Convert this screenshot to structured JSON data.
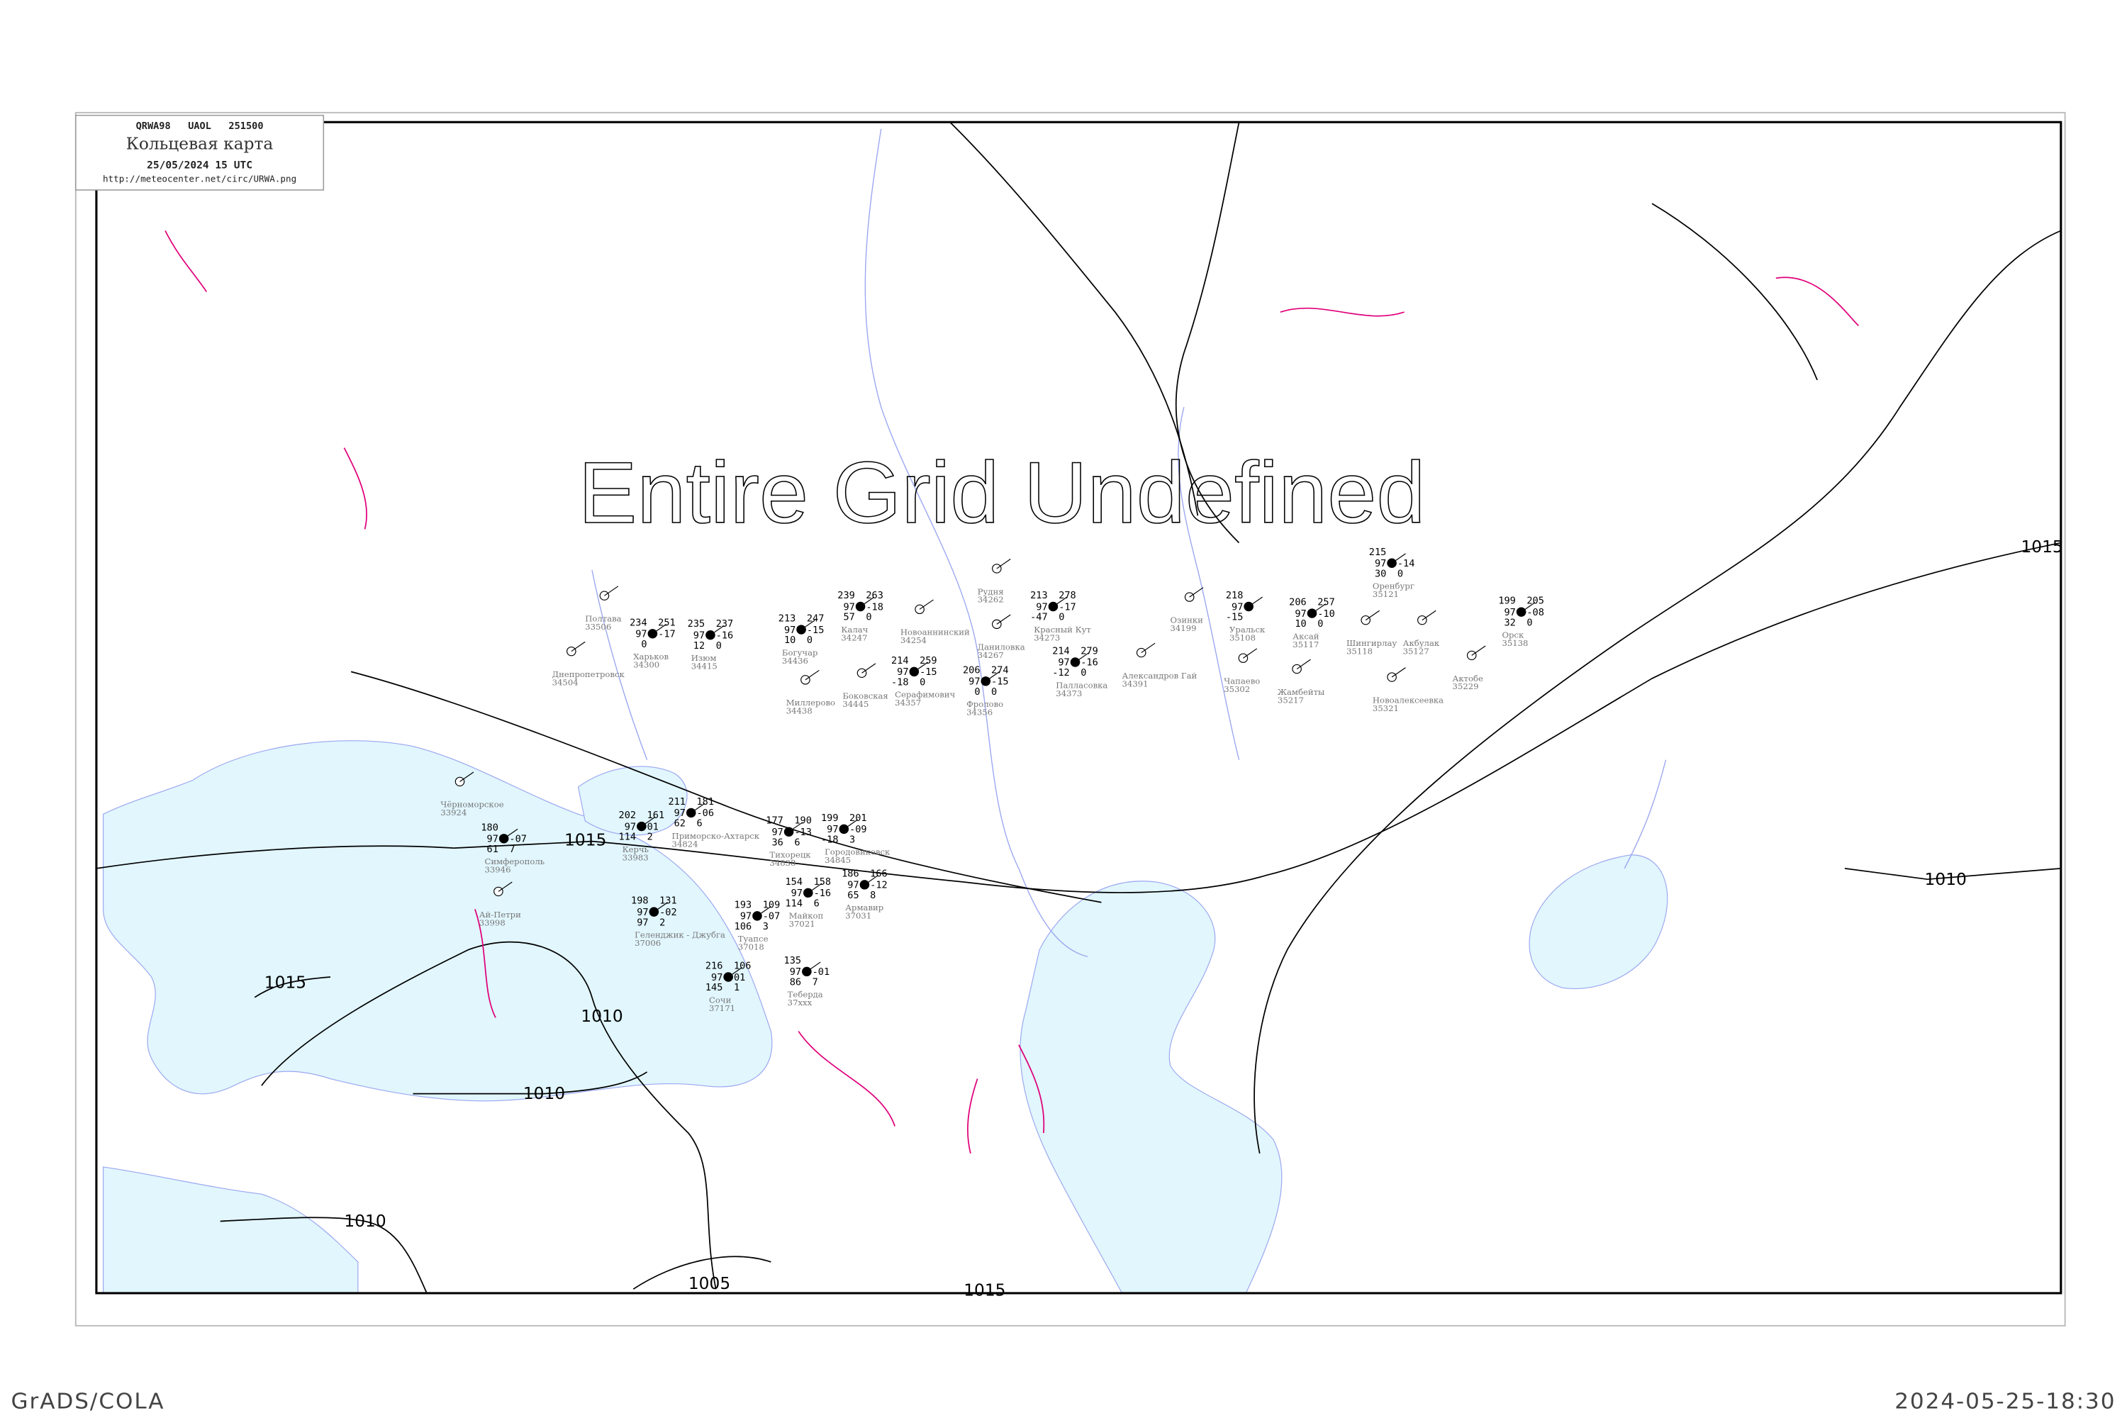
{
  "header": {
    "bulletin": "QRWA98   UAOL   251500",
    "title": "Кольцевая карта",
    "datetime": "25/05/2024 15 UTC",
    "url": "http://meteocenter.net/circ/URWA.png"
  },
  "overlay_message": "Entire Grid Undefined",
  "footer": {
    "left": "GrADS/COLA",
    "right": "2024-05-25-18:30"
  },
  "isobar_labels": [
    "1015",
    "1015",
    "1015",
    "1010",
    "1010",
    "1010",
    "1010",
    "1005",
    "1015"
  ],
  "colors": {
    "sea": "#e1f6fd",
    "river": "#9aa6f0",
    "front": "#e0007a",
    "isobar": "#000000",
    "station_name": "#777777",
    "precip_marker": "#1db31d"
  },
  "stations": [
    {
      "name": "Чёрноморское",
      "id": "33924",
      "obs": []
    },
    {
      "name": "Симферополь",
      "id": "33946",
      "obs": [
        "180",
        "97",
        "61",
        "",
        "-07",
        "7"
      ]
    },
    {
      "name": "Ай-Петри",
      "id": "33998",
      "obs": []
    },
    {
      "name": "Керчь",
      "id": "33983",
      "obs": [
        "202",
        "97",
        "114",
        "161",
        "01",
        "2"
      ]
    },
    {
      "name": "Приморско-Ахтарск",
      "id": "34824",
      "obs": [
        "211",
        "97",
        "62",
        "181",
        "-06",
        "6"
      ]
    },
    {
      "name": "Тихорецк",
      "id": "34838",
      "obs": [
        "177",
        "97",
        "36",
        "190",
        "-13",
        "6"
      ]
    },
    {
      "name": "Городовиковск",
      "id": "34845",
      "obs": [
        "199",
        "97",
        "-18",
        "201",
        "-09",
        "3"
      ]
    },
    {
      "name": "Геленджик - Джубга",
      "id": "37006",
      "obs": [
        "198",
        "97",
        "97",
        "131",
        "-02",
        "2"
      ]
    },
    {
      "name": "Туапсе",
      "id": "37018",
      "obs": [
        "193",
        "97",
        "106",
        "109",
        "-07",
        "3"
      ]
    },
    {
      "name": "Сочи",
      "id": "37171",
      "obs": [
        "216",
        "97",
        "145",
        "106",
        "01",
        "1"
      ]
    },
    {
      "name": "Майкоп",
      "id": "37021",
      "obs": [
        "154",
        "97",
        "114",
        "158",
        "-16",
        "6"
      ]
    },
    {
      "name": "Армавир",
      "id": "37031",
      "obs": [
        "186",
        "97",
        "65",
        "166",
        "-12",
        "8"
      ]
    },
    {
      "name": "Теберда",
      "id": "37xxx",
      "obs": [
        "135",
        "97",
        "86",
        "",
        "-01",
        "7"
      ]
    },
    {
      "name": "Полтава",
      "id": "33506",
      "obs": []
    },
    {
      "name": "Харьков",
      "id": "34300",
      "obs": [
        "234",
        "97",
        "0",
        "251",
        "-17",
        ""
      ]
    },
    {
      "name": "Изюм",
      "id": "34415",
      "obs": [
        "235",
        "97",
        "12",
        "237",
        "-16",
        "0"
      ]
    },
    {
      "name": "Днепропетровск",
      "id": "34504",
      "obs": []
    },
    {
      "name": "Калач",
      "id": "34247",
      "obs": [
        "239",
        "97",
        "57",
        "263",
        "-18",
        "0"
      ]
    },
    {
      "name": "Богучар",
      "id": "34436",
      "obs": [
        "213",
        "97",
        "10",
        "247",
        "-15",
        "0"
      ]
    },
    {
      "name": "Новоаннинский",
      "id": "34254",
      "obs": []
    },
    {
      "name": "Даниловка",
      "id": "34267",
      "obs": []
    },
    {
      "name": "Рудня",
      "id": "34262",
      "obs": []
    },
    {
      "name": "Серафимович",
      "id": "34357",
      "obs": [
        "214",
        "97",
        "-18",
        "259",
        "-15",
        "0"
      ]
    },
    {
      "name": "Фролово",
      "id": "34356",
      "obs": [
        "206",
        "97",
        "0",
        "274",
        "-15",
        "0"
      ]
    },
    {
      "name": "Боковская",
      "id": "34445",
      "obs": []
    },
    {
      "name": "Миллерово",
      "id": "34438",
      "obs": []
    },
    {
      "name": "Красный Кут",
      "id": "34273",
      "obs": [
        "213",
        "97",
        "-47",
        "278",
        "-17",
        "0"
      ]
    },
    {
      "name": "Палласовка",
      "id": "34373",
      "obs": [
        "214",
        "97",
        "-12",
        "279",
        "-16",
        "0"
      ]
    },
    {
      "name": "Александров Гай",
      "id": "34391",
      "obs": []
    },
    {
      "name": "Озинки",
      "id": "34199",
      "obs": []
    },
    {
      "name": "Уральск",
      "id": "35108",
      "obs": [
        "218",
        "97",
        "-15",
        "",
        "",
        ""
      ]
    },
    {
      "name": "Аксай",
      "id": "35117",
      "obs": [
        "206",
        "97",
        "10",
        "257",
        "-10",
        "0"
      ]
    },
    {
      "name": "Шингирлау",
      "id": "35118",
      "obs": []
    },
    {
      "name": "Акбулак",
      "id": "35127",
      "obs": []
    },
    {
      "name": "Оренбург",
      "id": "35121",
      "obs": [
        "215",
        "97",
        "30",
        "",
        "-14",
        "0"
      ]
    },
    {
      "name": "Орск",
      "id": "35138",
      "obs": [
        "199",
        "97",
        "32",
        "205",
        "-08",
        "0"
      ]
    },
    {
      "name": "Чапаево",
      "id": "35302",
      "obs": []
    },
    {
      "name": "Жамбейты",
      "id": "35217",
      "obs": []
    },
    {
      "name": "Актобе",
      "id": "35229",
      "obs": []
    },
    {
      "name": "Новоалексеевка",
      "id": "35321",
      "obs": []
    }
  ]
}
